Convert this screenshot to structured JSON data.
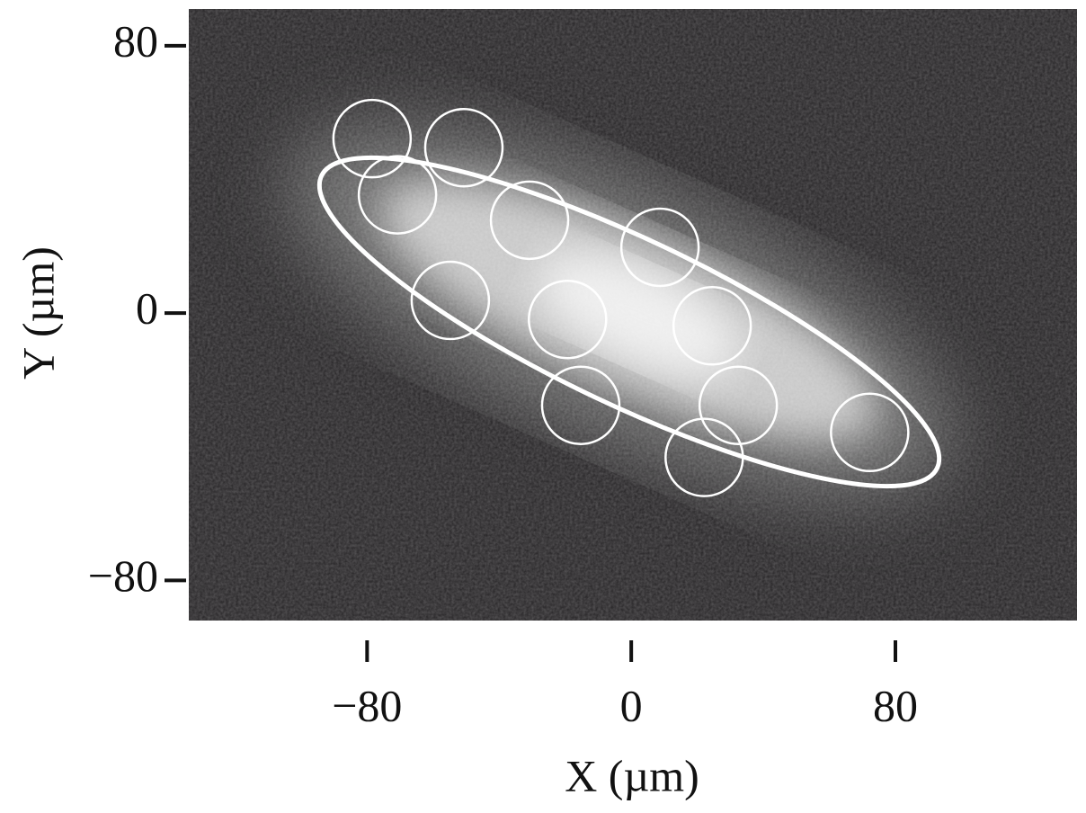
{
  "chart_data": {
    "type": "scatter",
    "x_label": "X (µm)",
    "y_label": "Y (µm)",
    "x": [
      -78.5,
      -50.7,
      -70.8,
      -30.8,
      8.7,
      -54.8,
      -19.3,
      24.5,
      -15.3,
      32.4,
      22.1,
      72.2
    ],
    "series": [
      {
        "color": "#ffffff",
        "values": [
          52.2,
          49.5,
          35.4,
          27.8,
          19.7,
          3.8,
          -1.9,
          -3.8,
          -27.6,
          -27.6,
          -43.2,
          -35.7
        ]
      }
    ],
    "xlim": [
      -134,
      135
    ],
    "ylim": [
      -92,
      91
    ],
    "xticks": [
      {
        "value": -80,
        "label": "−80"
      },
      0,
      80
    ],
    "yticks": [
      {
        "value": -80,
        "label": "−80"
      },
      0,
      80
    ],
    "grid": false
  }
}
